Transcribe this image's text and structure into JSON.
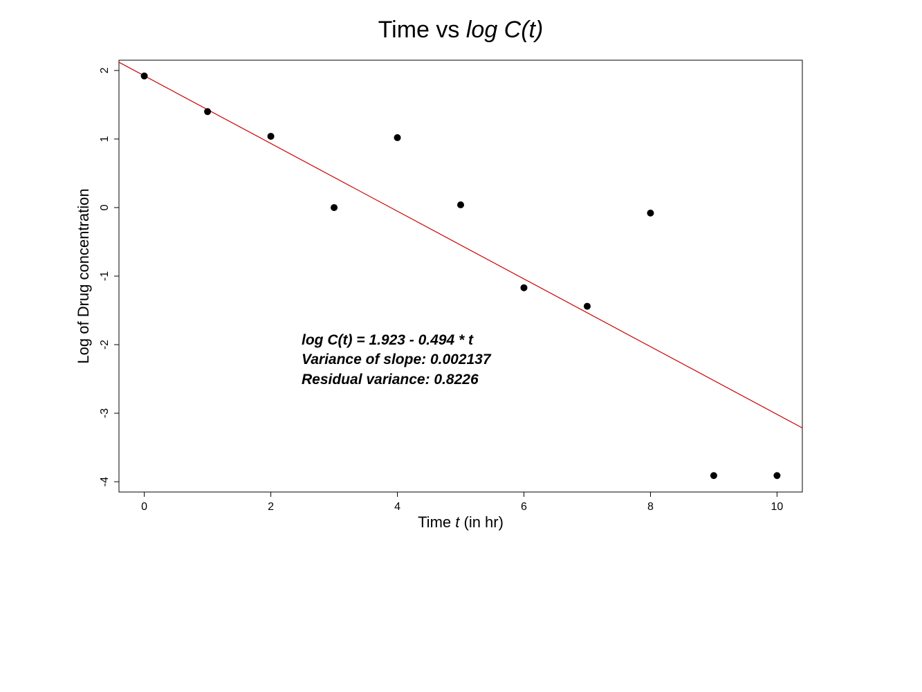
{
  "chart_data": {
    "type": "scatter",
    "title": {
      "plain": "Time vs ",
      "italic": "log C(t)"
    },
    "xlabel": {
      "before": "Time ",
      "italic": "t",
      "after": " (in hr)"
    },
    "ylabel": "Log of Drug concentration",
    "xlim": [
      -0.4,
      10.4
    ],
    "ylim": [
      -4.15,
      2.15
    ],
    "xticks": [
      0,
      2,
      4,
      6,
      8,
      10
    ],
    "yticks": [
      -4,
      -3,
      -2,
      -1,
      0,
      1,
      2
    ],
    "grid": false,
    "series": [
      {
        "x": [
          0,
          1,
          2,
          3,
          4,
          5,
          6,
          7,
          8,
          9,
          10
        ],
        "y": [
          1.92,
          1.4,
          1.04,
          0.0,
          1.02,
          0.04,
          -1.17,
          -1.44,
          -0.08,
          -3.91,
          -3.91
        ],
        "color": "#000000",
        "marker": "filled-circle"
      }
    ],
    "fit_line": {
      "intercept": 1.923,
      "slope": -0.494,
      "color": "#cc0000"
    },
    "annotations": [
      "log C(t) = 1.923 - 0.494 * t",
      "Variance of slope: 0.002137",
      "Residual variance: 0.8226"
    ]
  }
}
